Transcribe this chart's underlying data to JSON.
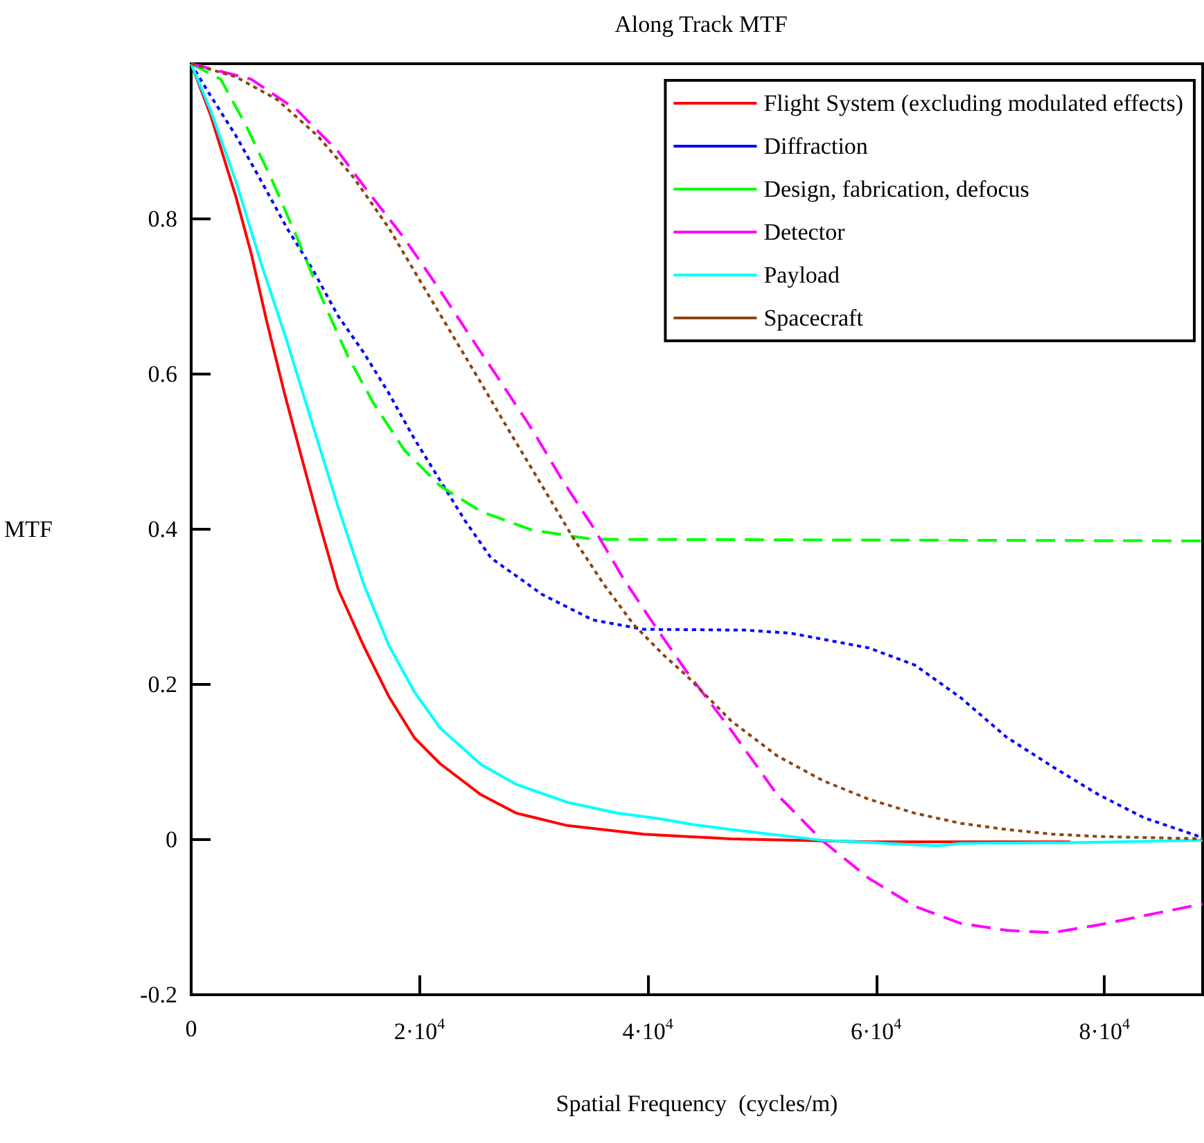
{
  "chart_data": {
    "type": "line",
    "title": "Along Track MTF",
    "xlabel": "Spatial Frequency  (cycles/m)",
    "ylabel": "MTF",
    "xlim": [
      0,
      88600
    ],
    "ylim": [
      -0.2,
      1
    ],
    "xticks": [
      0,
      {
        "value": 20000,
        "label": "2·10$^{4}$"
      },
      {
        "value": 40000,
        "label": "4·10$^{4}$"
      },
      {
        "value": 60000,
        "label": "6·10$^{4}$"
      },
      {
        "value": 80000,
        "label": "8·10$^{4}$"
      }
    ],
    "yticks": [
      -0.2,
      0,
      0.2,
      0.4,
      0.6,
      0.8
    ],
    "grid": false,
    "legend": "top right",
    "marker": "none",
    "series": [
      {
        "name": "Flight System (excluding modulated effects)",
        "color": "#ff0000",
        "line_style": "solid",
        "x": [
          0,
          1700,
          3930,
          5270,
          6620,
          8180,
          9740,
          11080,
          12870,
          15100,
          17330,
          19570,
          21800,
          25370,
          28500,
          32970,
          39670,
          43300,
          47300,
          59400,
          77000
        ],
        "values": [
          1.0,
          0.934,
          0.828,
          0.755,
          0.668,
          0.575,
          0.489,
          0.416,
          0.323,
          0.25,
          0.184,
          0.131,
          0.098,
          0.058,
          0.034,
          0.018,
          0.007,
          0.004,
          0.001,
          -0.003,
          -0.003
        ]
      },
      {
        "name": "Diffraction",
        "color": "#0000ff",
        "line_style": "dotted",
        "x": [
          0,
          1480,
          3930,
          6170,
          8400,
          10640,
          12870,
          15100,
          17330,
          19570,
          21800,
          24040,
          26270,
          30740,
          35200,
          39670,
          48500,
          52530,
          59370,
          63390,
          67400,
          71430,
          75450,
          79470,
          83490,
          88310,
          88600
        ],
        "values": [
          1.0,
          0.964,
          0.907,
          0.848,
          0.788,
          0.735,
          0.675,
          0.628,
          0.575,
          0.516,
          0.463,
          0.41,
          0.363,
          0.316,
          0.283,
          0.271,
          0.27,
          0.266,
          0.247,
          0.225,
          0.183,
          0.132,
          0.094,
          0.058,
          0.028,
          0.004,
          0.002
        ]
      },
      {
        "name": "Design, fabrication, defocus",
        "color": "#00ff00",
        "line_style": "dashed",
        "x": [
          0,
          2590,
          4820,
          7060,
          9300,
          11530,
          13760,
          16000,
          18680,
          21800,
          25370,
          29850,
          35200,
          88600
        ],
        "values": [
          1.0,
          0.98,
          0.92,
          0.851,
          0.775,
          0.695,
          0.622,
          0.562,
          0.502,
          0.456,
          0.423,
          0.399,
          0.387,
          0.385
        ]
      },
      {
        "name": "Detector",
        "color": "#ff00ff",
        "line_style": "dashed",
        "x": [
          0,
          5270,
          9300,
          12870,
          15550,
          18680,
          21800,
          24480,
          27160,
          29850,
          32530,
          35200,
          37880,
          40560,
          43280,
          47300,
          51330,
          55340,
          59370,
          63390,
          67400,
          71430,
          75450,
          79470,
          83490,
          88600
        ],
        "values": [
          1.0,
          0.98,
          0.94,
          0.887,
          0.834,
          0.775,
          0.708,
          0.648,
          0.589,
          0.529,
          0.463,
          0.403,
          0.336,
          0.277,
          0.219,
          0.141,
          0.058,
          -0.002,
          -0.05,
          -0.086,
          -0.108,
          -0.117,
          -0.12,
          -0.11,
          -0.098,
          -0.083
        ]
      },
      {
        "name": "Payload",
        "color": "#00ffff",
        "line_style": "solid",
        "x": [
          0,
          1700,
          3930,
          6170,
          8400,
          10640,
          12870,
          15100,
          17330,
          19570,
          21800,
          25370,
          28500,
          32970,
          37430,
          41000,
          44130,
          47300,
          55340,
          65400,
          67400,
          77000,
          88600
        ],
        "values": [
          1.0,
          0.94,
          0.848,
          0.741,
          0.642,
          0.535,
          0.429,
          0.33,
          0.25,
          0.19,
          0.144,
          0.097,
          0.071,
          0.048,
          0.034,
          0.027,
          0.019,
          0.013,
          -0.001,
          -0.008,
          -0.005,
          -0.004,
          -0.001
        ]
      },
      {
        "name": "Spacecraft",
        "color": "#8b4513",
        "line_style": "dotted",
        "x": [
          0,
          3930,
          7510,
          11080,
          14200,
          17330,
          20020,
          22700,
          25370,
          28050,
          30740,
          33420,
          36100,
          38770,
          41450,
          43280,
          47300,
          51330,
          55340,
          59370,
          63390,
          67400,
          71430,
          75450,
          79470,
          88600
        ],
        "values": [
          1.0,
          0.983,
          0.954,
          0.907,
          0.854,
          0.788,
          0.721,
          0.655,
          0.589,
          0.522,
          0.456,
          0.39,
          0.33,
          0.277,
          0.237,
          0.213,
          0.153,
          0.108,
          0.076,
          0.052,
          0.034,
          0.021,
          0.013,
          0.007,
          0.004,
          0.001
        ]
      }
    ]
  }
}
